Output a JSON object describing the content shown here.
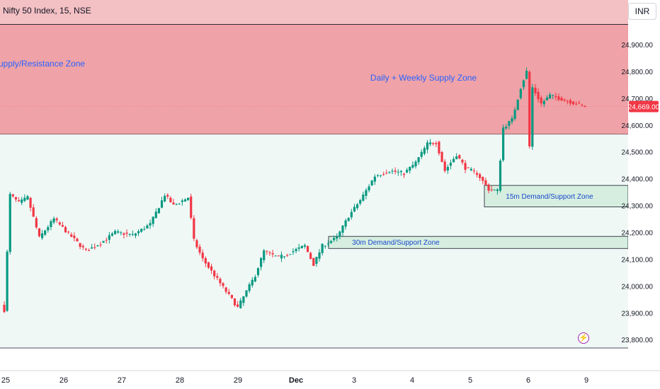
{
  "header": {
    "symbol": "Nifty 50 Index, 15, NSE",
    "currency": "INR"
  },
  "colors": {
    "bullish": "#089981",
    "bearish": "#f23645",
    "supply_fill": "#efa2a7",
    "supply_top_fill": "#f3c0c4",
    "demand_fill": "#d6eedf",
    "bg_fill": "#f0f8f6",
    "label_blue": "#2962ff",
    "last_price_bg": "#f23645"
  },
  "chart_data": {
    "type": "candlestick",
    "title": "",
    "x_ticks": [
      "25",
      "26",
      "27",
      "28",
      "29",
      "Dec",
      "3",
      "4",
      "5",
      "6",
      "9"
    ],
    "y_ticks": [
      23800,
      23900,
      24000,
      24100,
      24200,
      24300,
      24400,
      24500,
      24600,
      24700,
      24800,
      24900
    ],
    "y_tick_labels": [
      "23,800.00",
      "23,900.00",
      "24,000.00",
      "24,100.00",
      "24,200.00",
      "24,300.00",
      "24,400.00",
      "24,500.00",
      "24,600.00",
      "24,700.00",
      "24,800.00",
      "24,900.00"
    ],
    "ylim": [
      23770,
      25080
    ],
    "last_price": 24669.0,
    "last_price_label": "24,669.00",
    "zones": [
      {
        "label": "Daily + Weekly Supply Zone",
        "from": 24565,
        "to": 24975,
        "kind": "supply"
      },
      {
        "label": "upply/Resistance Zone",
        "from": 24565,
        "to": 24975,
        "kind": "supply"
      },
      {
        "label": "15m Demand/Support Zone",
        "from": 24295,
        "to": 24375,
        "kind": "demand"
      },
      {
        "label": "30m Demand/Support Zone",
        "from": 24140,
        "to": 24185,
        "kind": "demand"
      }
    ],
    "anchors": [
      {
        "i": 0,
        "p": 23910
      },
      {
        "i": 2,
        "p": 24340
      },
      {
        "i": 5,
        "p": 24310
      },
      {
        "i": 8,
        "p": 24330
      },
      {
        "i": 12,
        "p": 24180
      },
      {
        "i": 17,
        "p": 24250
      },
      {
        "i": 22,
        "p": 24195
      },
      {
        "i": 28,
        "p": 24130
      },
      {
        "i": 33,
        "p": 24160
      },
      {
        "i": 38,
        "p": 24200
      },
      {
        "i": 44,
        "p": 24190
      },
      {
        "i": 50,
        "p": 24230
      },
      {
        "i": 55,
        "p": 24340
      },
      {
        "i": 58,
        "p": 24300
      },
      {
        "i": 63,
        "p": 24330
      },
      {
        "i": 65,
        "p": 24170
      },
      {
        "i": 68,
        "p": 24100
      },
      {
        "i": 74,
        "p": 24010
      },
      {
        "i": 80,
        "p": 23920
      },
      {
        "i": 86,
        "p": 24040
      },
      {
        "i": 89,
        "p": 24130
      },
      {
        "i": 94,
        "p": 24105
      },
      {
        "i": 100,
        "p": 24135
      },
      {
        "i": 103,
        "p": 24150
      },
      {
        "i": 106,
        "p": 24080
      },
      {
        "i": 109,
        "p": 24150
      },
      {
        "i": 114,
        "p": 24180
      },
      {
        "i": 118,
        "p": 24260
      },
      {
        "i": 122,
        "p": 24320
      },
      {
        "i": 127,
        "p": 24410
      },
      {
        "i": 132,
        "p": 24430
      },
      {
        "i": 137,
        "p": 24420
      },
      {
        "i": 141,
        "p": 24460
      },
      {
        "i": 145,
        "p": 24530
      },
      {
        "i": 148,
        "p": 24535
      },
      {
        "i": 151,
        "p": 24430
      },
      {
        "i": 155,
        "p": 24490
      },
      {
        "i": 158,
        "p": 24440
      },
      {
        "i": 162,
        "p": 24420
      },
      {
        "i": 166,
        "p": 24360
      },
      {
        "i": 169,
        "p": 24355
      },
      {
        "i": 171,
        "p": 24590
      },
      {
        "i": 174,
        "p": 24620
      },
      {
        "i": 177,
        "p": 24740
      },
      {
        "i": 179,
        "p": 24800
      },
      {
        "i": 180,
        "p": 24520
      },
      {
        "i": 181,
        "p": 24740
      },
      {
        "i": 184,
        "p": 24680
      },
      {
        "i": 187,
        "p": 24710
      },
      {
        "i": 193,
        "p": 24690
      },
      {
        "i": 199,
        "p": 24669
      }
    ],
    "n_candles": 200
  }
}
